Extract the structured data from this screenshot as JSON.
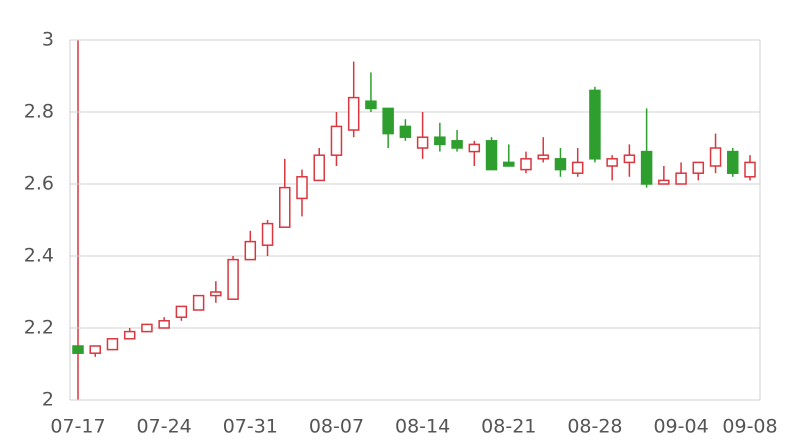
{
  "chart_data": {
    "type": "candlestick",
    "categories": [
      "07-17",
      null,
      null,
      null,
      null,
      "07-24",
      null,
      null,
      null,
      null,
      "07-31",
      null,
      null,
      null,
      null,
      "08-07",
      null,
      null,
      null,
      null,
      "08-14",
      null,
      null,
      null,
      null,
      "08-21",
      null,
      null,
      null,
      null,
      "08-28",
      null,
      null,
      null,
      null,
      "09-04",
      null,
      null,
      null,
      "09-08"
    ],
    "open": [
      2.15,
      2.13,
      2.14,
      2.17,
      2.19,
      2.2,
      2.23,
      2.25,
      2.29,
      2.28,
      2.39,
      2.43,
      2.48,
      2.56,
      2.61,
      2.68,
      2.75,
      2.83,
      2.81,
      2.76,
      2.7,
      2.73,
      2.72,
      2.69,
      2.72,
      2.66,
      2.64,
      2.67,
      2.67,
      2.63,
      2.86,
      2.65,
      2.66,
      2.69,
      2.6,
      2.6,
      2.63,
      2.65,
      2.69,
      2.62
    ],
    "high": [
      2.15,
      2.15,
      2.17,
      2.2,
      2.21,
      2.23,
      2.26,
      2.29,
      2.33,
      2.4,
      2.47,
      2.5,
      2.67,
      2.64,
      2.7,
      2.8,
      2.94,
      2.91,
      2.81,
      2.78,
      2.8,
      2.77,
      2.75,
      2.72,
      2.73,
      2.71,
      2.69,
      2.73,
      2.7,
      2.7,
      2.87,
      2.68,
      2.71,
      2.81,
      2.65,
      2.66,
      2.66,
      2.74,
      2.7,
      2.68
    ],
    "low": [
      2.13,
      2.12,
      2.14,
      2.17,
      2.19,
      2.2,
      2.22,
      2.25,
      2.27,
      2.28,
      2.39,
      2.4,
      2.48,
      2.51,
      2.61,
      2.65,
      2.73,
      2.8,
      2.7,
      2.72,
      2.67,
      2.69,
      2.69,
      2.65,
      2.64,
      2.65,
      2.63,
      2.66,
      2.62,
      2.62,
      2.66,
      2.61,
      2.62,
      2.59,
      2.6,
      2.6,
      2.61,
      2.63,
      2.62,
      2.61
    ],
    "close": [
      2.13,
      2.15,
      2.17,
      2.19,
      2.21,
      2.22,
      2.26,
      2.29,
      2.3,
      2.39,
      2.44,
      2.49,
      2.59,
      2.62,
      2.68,
      2.76,
      2.84,
      2.81,
      2.74,
      2.73,
      2.73,
      2.71,
      2.7,
      2.71,
      2.64,
      2.65,
      2.67,
      2.68,
      2.64,
      2.66,
      2.67,
      2.67,
      2.68,
      2.6,
      2.61,
      2.63,
      2.66,
      2.7,
      2.63,
      2.66
    ],
    "up_color": "#d9363e",
    "down_color": "#2e9e2e",
    "ylim": [
      2,
      3
    ],
    "yticks": [
      2,
      2.2,
      2.4,
      2.6,
      2.8,
      3
    ],
    "grid": true
  }
}
